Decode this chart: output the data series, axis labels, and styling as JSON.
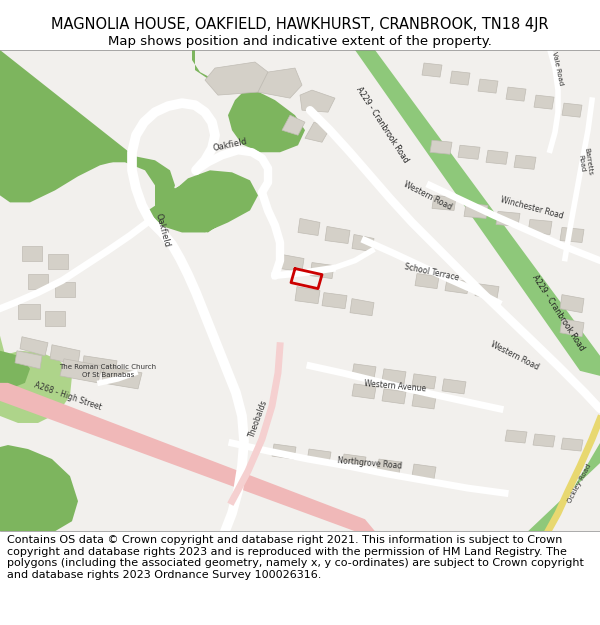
{
  "title_line1": "MAGNOLIA HOUSE, OAKFIELD, HAWKHURST, CRANBROOK, TN18 4JR",
  "title_line2": "Map shows position and indicative extent of the property.",
  "title_fontsize": 10.5,
  "subtitle_fontsize": 9.5,
  "footer_text": "Contains OS data © Crown copyright and database right 2021. This information is subject to Crown copyright and database rights 2023 and is reproduced with the permission of HM Land Registry. The polygons (including the associated geometry, namely x, y co-ordinates) are subject to Crown copyright and database rights 2023 Ordnance Survey 100026316.",
  "footer_fontsize": 8.0,
  "map_bg": "#f2f0ed",
  "green_dark": "#7db55e",
  "green_light": "#aed48a",
  "a_road_green": "#8ec87a",
  "a_road_pink": "#f0b8b8",
  "building_color": "#d4d0c8",
  "building_outline": "#c0bcb4",
  "red_outline": "#cc0000",
  "road_color": "#ffffff",
  "yellow_road": "#e8d870",
  "text_color": "#333333",
  "road_label_color": "#222222"
}
